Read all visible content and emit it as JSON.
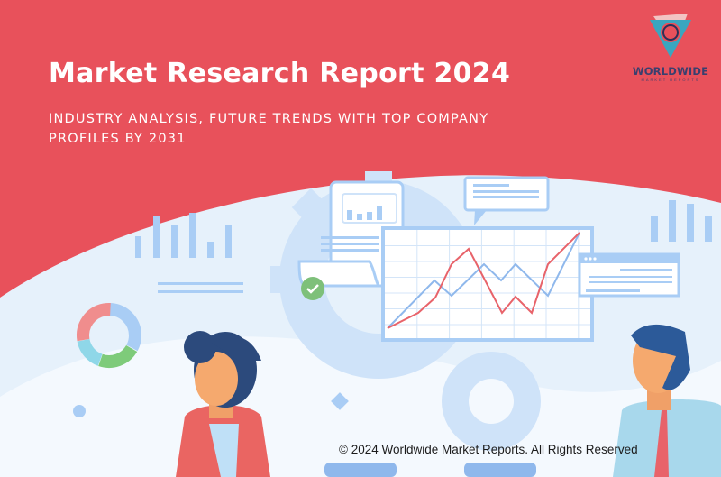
{
  "header": {
    "title": "Market Research Report 2024",
    "subtitle": "INDUSTRY ANALYSIS, FUTURE TRENDS WITH TOP COMPANY PROFILES BY 2031"
  },
  "logo": {
    "name": "WORLDWIDE",
    "tagline": "MARKET REPORTS",
    "icon": "globe-triangle-icon"
  },
  "footer": {
    "copyright": "© 2024 Worldwide Market Reports. All Rights Reserved"
  },
  "colors": {
    "banner": "#e8515b",
    "background": "#e6f1fb",
    "light_blue": "#a9cdf5",
    "line_red": "#e8636a",
    "line_blue": "#8fb8ec"
  }
}
